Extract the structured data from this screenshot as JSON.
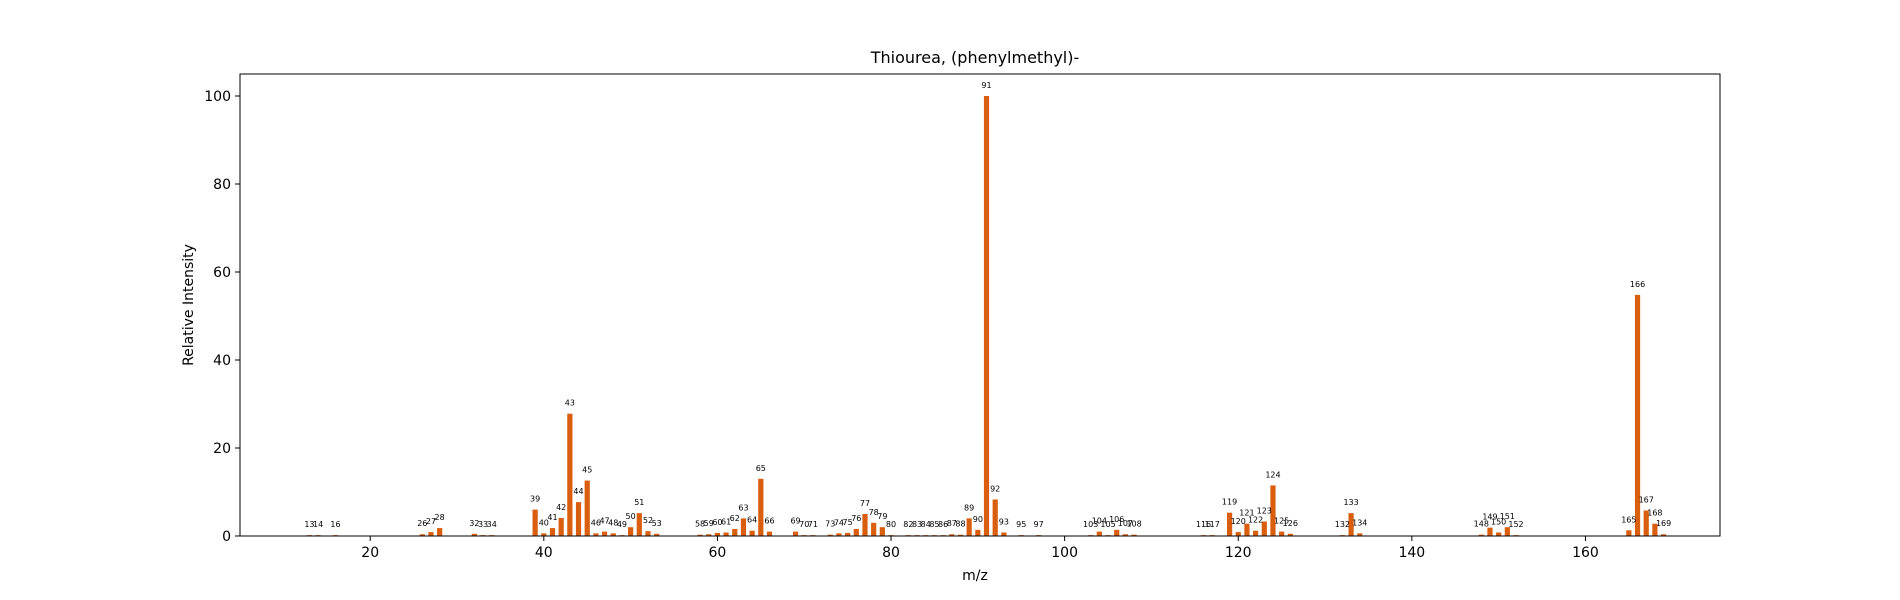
{
  "chart_data": {
    "type": "bar",
    "title": "Thiourea, (phenylmethyl)-",
    "xlabel": "m/z",
    "ylabel": "Relative Intensity",
    "xlim": [
      5,
      175.5
    ],
    "ylim": [
      0,
      105
    ],
    "xticks": [
      20,
      40,
      60,
      80,
      100,
      120,
      140,
      160
    ],
    "yticks": [
      0,
      20,
      40,
      60,
      80,
      100
    ],
    "grid": false,
    "bar_color": "#d95f0e",
    "series": [
      {
        "x": [
          13,
          14,
          16,
          26,
          27,
          28,
          32,
          33,
          34,
          39,
          40,
          41,
          42,
          43,
          44,
          45,
          46,
          47,
          48,
          49,
          50,
          51,
          52,
          53,
          58,
          59,
          60,
          61,
          62,
          63,
          64,
          65,
          66,
          69,
          70,
          71,
          73,
          74,
          75,
          76,
          77,
          78,
          79,
          80,
          82,
          83,
          84,
          85,
          86,
          87,
          88,
          89,
          90,
          91,
          92,
          93,
          95,
          97,
          103,
          104,
          105,
          106,
          107,
          108,
          116,
          117,
          119,
          120,
          121,
          122,
          123,
          124,
          125,
          126,
          132,
          133,
          134,
          148,
          149,
          150,
          151,
          152,
          165,
          166,
          167,
          168,
          169
        ],
        "values": [
          0.2,
          0.2,
          0.2,
          0.4,
          0.9,
          1.8,
          0.5,
          0.2,
          0.2,
          6.0,
          0.6,
          1.8,
          4.1,
          27.8,
          7.7,
          12.6,
          0.6,
          1.0,
          0.6,
          0.2,
          2.0,
          5.2,
          1.1,
          0.5,
          0.3,
          0.4,
          0.7,
          0.8,
          1.6,
          4.0,
          1.2,
          13.0,
          1.0,
          1.0,
          0.2,
          0.2,
          0.3,
          0.6,
          0.7,
          1.6,
          5.0,
          3.0,
          2.0,
          0.2,
          0.2,
          0.2,
          0.2,
          0.2,
          0.2,
          0.4,
          0.3,
          4.0,
          1.4,
          100.0,
          8.3,
          0.8,
          0.2,
          0.2,
          0.2,
          1.0,
          0.2,
          1.4,
          0.4,
          0.3,
          0.2,
          0.2,
          5.3,
          0.9,
          2.8,
          1.2,
          3.3,
          11.5,
          1.0,
          0.5,
          0.2,
          5.2,
          0.6,
          0.3,
          1.9,
          0.8,
          2.0,
          0.2,
          1.3,
          54.8,
          5.8,
          2.8,
          0.4
        ]
      }
    ]
  }
}
